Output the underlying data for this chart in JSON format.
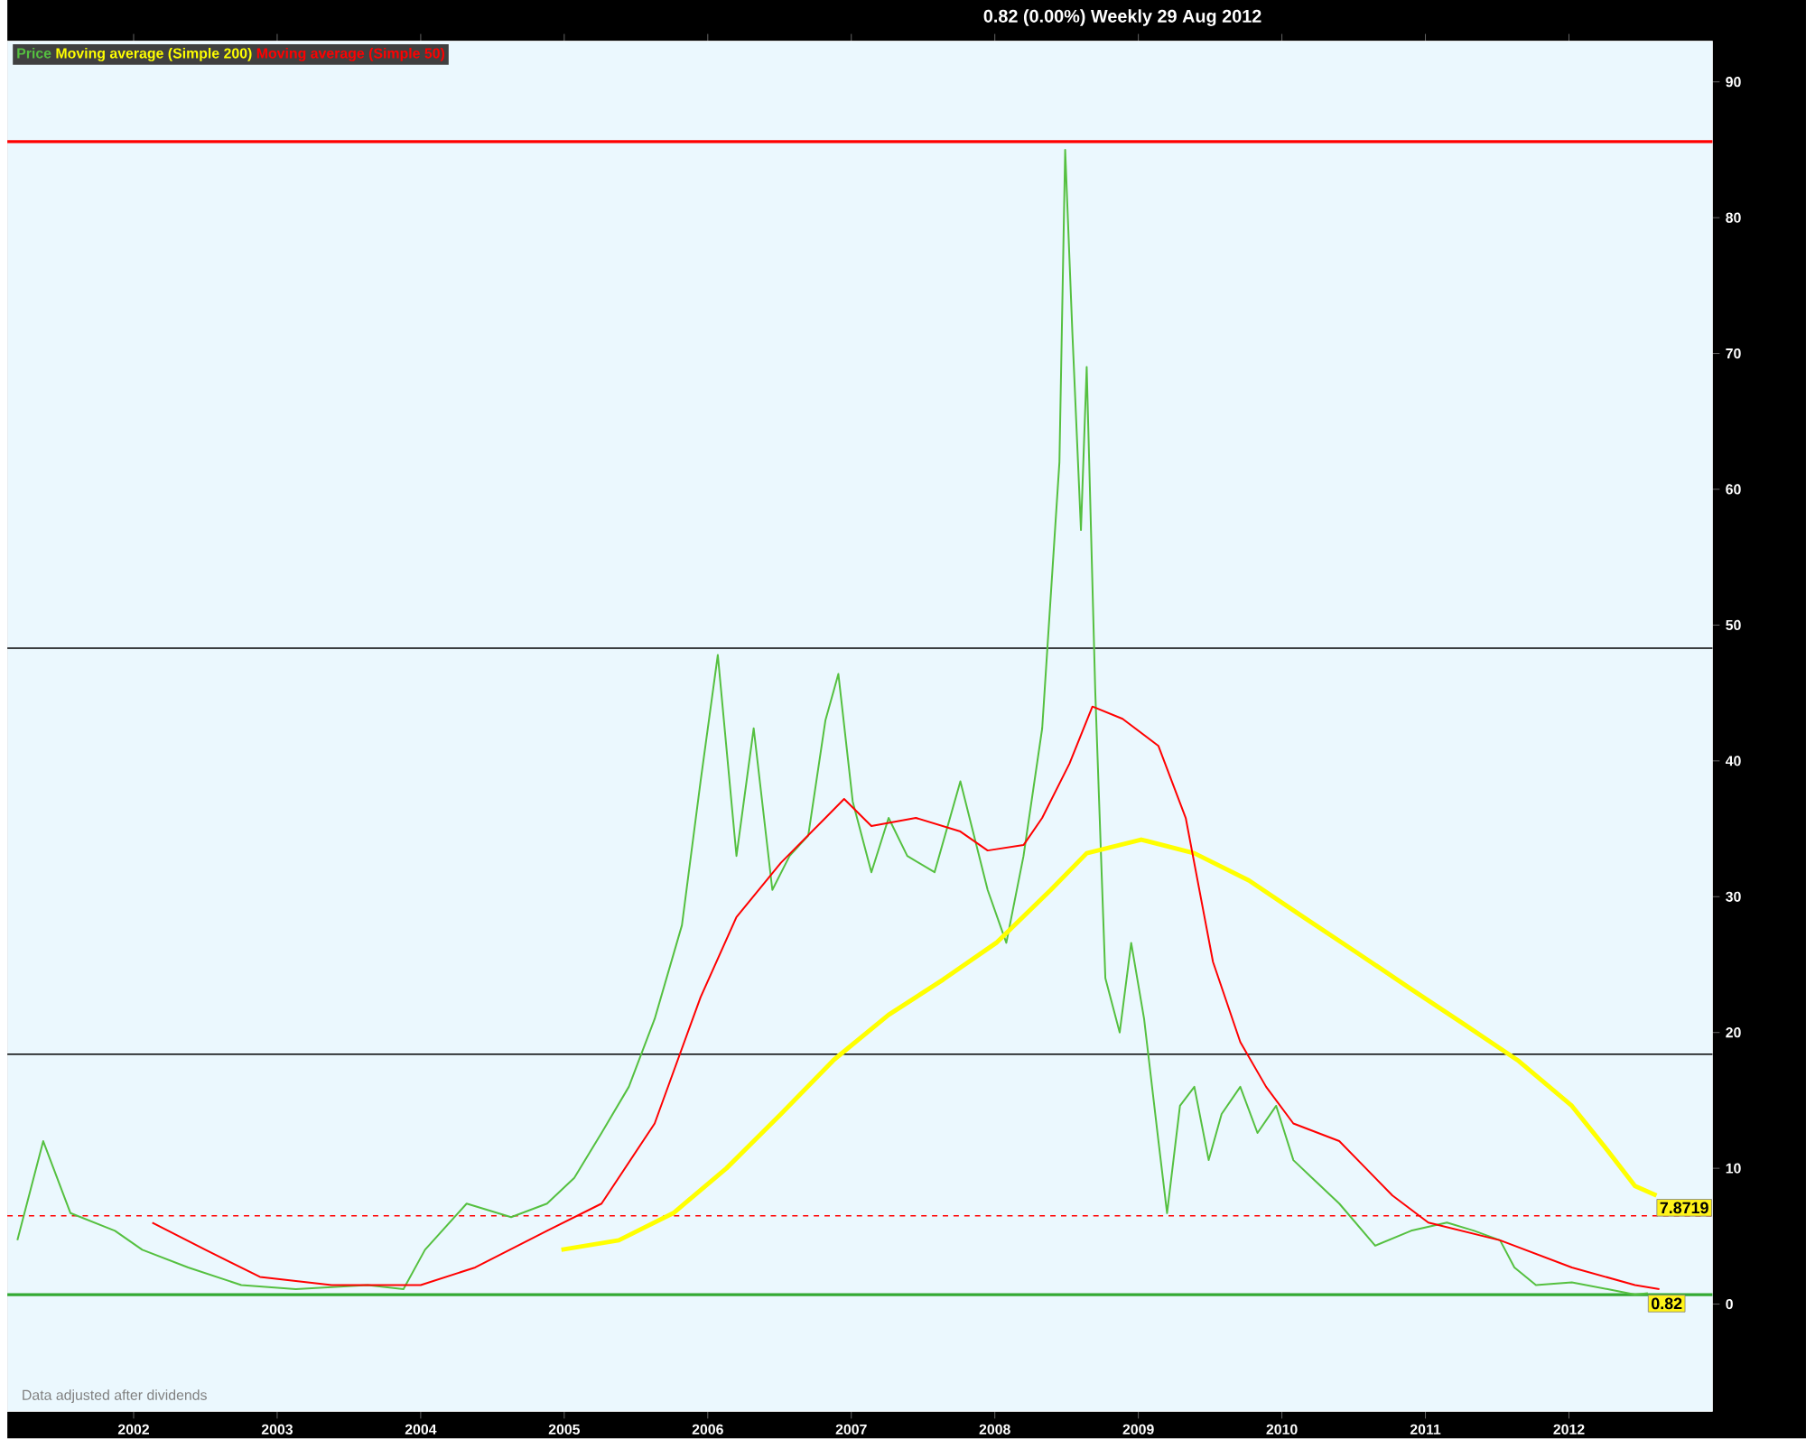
{
  "chart_data": {
    "type": "line",
    "title": "0.82 (0.00%)   Weekly  29 Aug 2012",
    "xlim": [
      2001.12,
      2013.0
    ],
    "xticks": [
      2002,
      2003,
      2004,
      2005,
      2006,
      2007,
      2008,
      2009,
      2010,
      2011,
      2012
    ],
    "ylim": [
      -7.9,
      93
    ],
    "yticks": [
      0,
      10,
      20,
      30,
      40,
      50,
      60,
      70,
      80,
      90
    ],
    "legend": "top left",
    "series": [
      {
        "name": "Price",
        "color": "#55c040",
        "x": [
          2001.19,
          2001.37,
          2001.56,
          2001.87,
          2002.06,
          2002.38,
          2002.75,
          2003.13,
          2003.63,
          2003.88,
          2004.03,
          2004.32,
          2004.63,
          2004.88,
          2005.07,
          2005.26,
          2005.45,
          2005.63,
          2005.82,
          2005.95,
          2006.07,
          2006.2,
          2006.32,
          2006.45,
          2006.57,
          2006.7,
          2006.82,
          2006.91,
          2007.01,
          2007.14,
          2007.26,
          2007.39,
          2007.58,
          2007.76,
          2007.95,
          2008.08,
          2008.2,
          2008.33,
          2008.45,
          2008.49,
          2008.54,
          2008.6,
          2008.64,
          2008.7,
          2008.77,
          2008.87,
          2008.95,
          2009.04,
          2009.14,
          2009.2,
          2009.29,
          2009.39,
          2009.49,
          2009.58,
          2009.71,
          2009.83,
          2009.96,
          2010.08,
          2010.21,
          2010.4,
          2010.65,
          2010.9,
          2011.15,
          2011.34,
          2011.52,
          2011.62,
          2011.77,
          2012.02,
          2012.27,
          2012.46,
          2012.55
        ],
        "values": [
          4.7,
          12,
          6.7,
          5.4,
          4,
          2.7,
          1.4,
          1.1,
          1.4,
          1.1,
          4,
          7.4,
          6.4,
          7.4,
          9.3,
          12.6,
          16,
          21,
          27.9,
          38.5,
          47.8,
          33,
          42.4,
          30.5,
          33,
          34.5,
          43,
          46.4,
          37,
          31.8,
          35.8,
          33,
          31.8,
          38.5,
          30.5,
          26.6,
          33,
          42.4,
          62,
          85,
          71.6,
          57,
          69,
          45,
          24,
          20,
          26.6,
          21,
          12,
          6.7,
          14.6,
          16,
          10.6,
          14,
          16,
          12.6,
          14.6,
          10.6,
          9.3,
          7.4,
          4.3,
          5.4,
          6,
          5.4,
          4.7,
          2.7,
          1.4,
          1.6,
          1.1,
          0.7,
          0.8
        ]
      },
      {
        "name": "Moving average (Simple 200)",
        "color": "#ffff00",
        "x": [
          2004.98,
          2005.38,
          2005.76,
          2006.13,
          2006.51,
          2006.88,
          2007.26,
          2007.64,
          2008.01,
          2008.39,
          2008.64,
          2009.02,
          2009.39,
          2009.77,
          2010.15,
          2010.52,
          2010.9,
          2011.27,
          2011.65,
          2012.02,
          2012.27,
          2012.46,
          2012.61
        ],
        "values": [
          4,
          4.7,
          6.7,
          10,
          14,
          18,
          21.3,
          23.9,
          26.6,
          30.5,
          33.2,
          34.2,
          33.2,
          31.2,
          28.5,
          25.9,
          23.2,
          20.6,
          17.9,
          14.6,
          11.3,
          8.7,
          8.0
        ]
      },
      {
        "name": "Moving average (Simple 50)",
        "color": "#ff0000",
        "x": [
          2002.13,
          2002.5,
          2002.88,
          2003.38,
          2004.0,
          2004.38,
          2004.88,
          2005.26,
          2005.63,
          2005.95,
          2006.2,
          2006.51,
          2006.82,
          2006.95,
          2007.14,
          2007.45,
          2007.76,
          2007.95,
          2008.2,
          2008.33,
          2008.52,
          2008.68,
          2008.89,
          2009.14,
          2009.33,
          2009.52,
          2009.71,
          2009.89,
          2010.08,
          2010.4,
          2010.77,
          2011.02,
          2011.52,
          2012.02,
          2012.46,
          2012.63
        ],
        "values": [
          6.0,
          4,
          2,
          1.4,
          1.4,
          2.7,
          5.4,
          7.4,
          13.3,
          22.6,
          28.5,
          32.5,
          35.8,
          37.2,
          35.2,
          35.8,
          34.8,
          33.4,
          33.8,
          35.8,
          39.8,
          44,
          43.1,
          41.1,
          35.8,
          25.2,
          19.3,
          16,
          13.3,
          12,
          8,
          6,
          4.7,
          2.7,
          1.4,
          1.1
        ]
      }
    ],
    "ref_lines": [
      {
        "axis": "y",
        "value": 85.6,
        "color": "#ff0000"
      },
      {
        "axis": "y",
        "value": 48.3,
        "color": "#000000"
      },
      {
        "axis": "y",
        "value": 18.4,
        "color": "#000000"
      },
      {
        "axis": "y",
        "value": 6.5,
        "color": "#ff0000",
        "line_style": "dashed"
      },
      {
        "axis": "y",
        "value": 0.7,
        "color": "#33aa33"
      }
    ],
    "annotations": [
      {
        "text": "7.8719",
        "x": 2012.61,
        "y": 7.8719
      },
      {
        "text": "0.82",
        "x": 2012.55,
        "y": 0.82
      },
      "Data adjusted after dividends"
    ]
  }
}
